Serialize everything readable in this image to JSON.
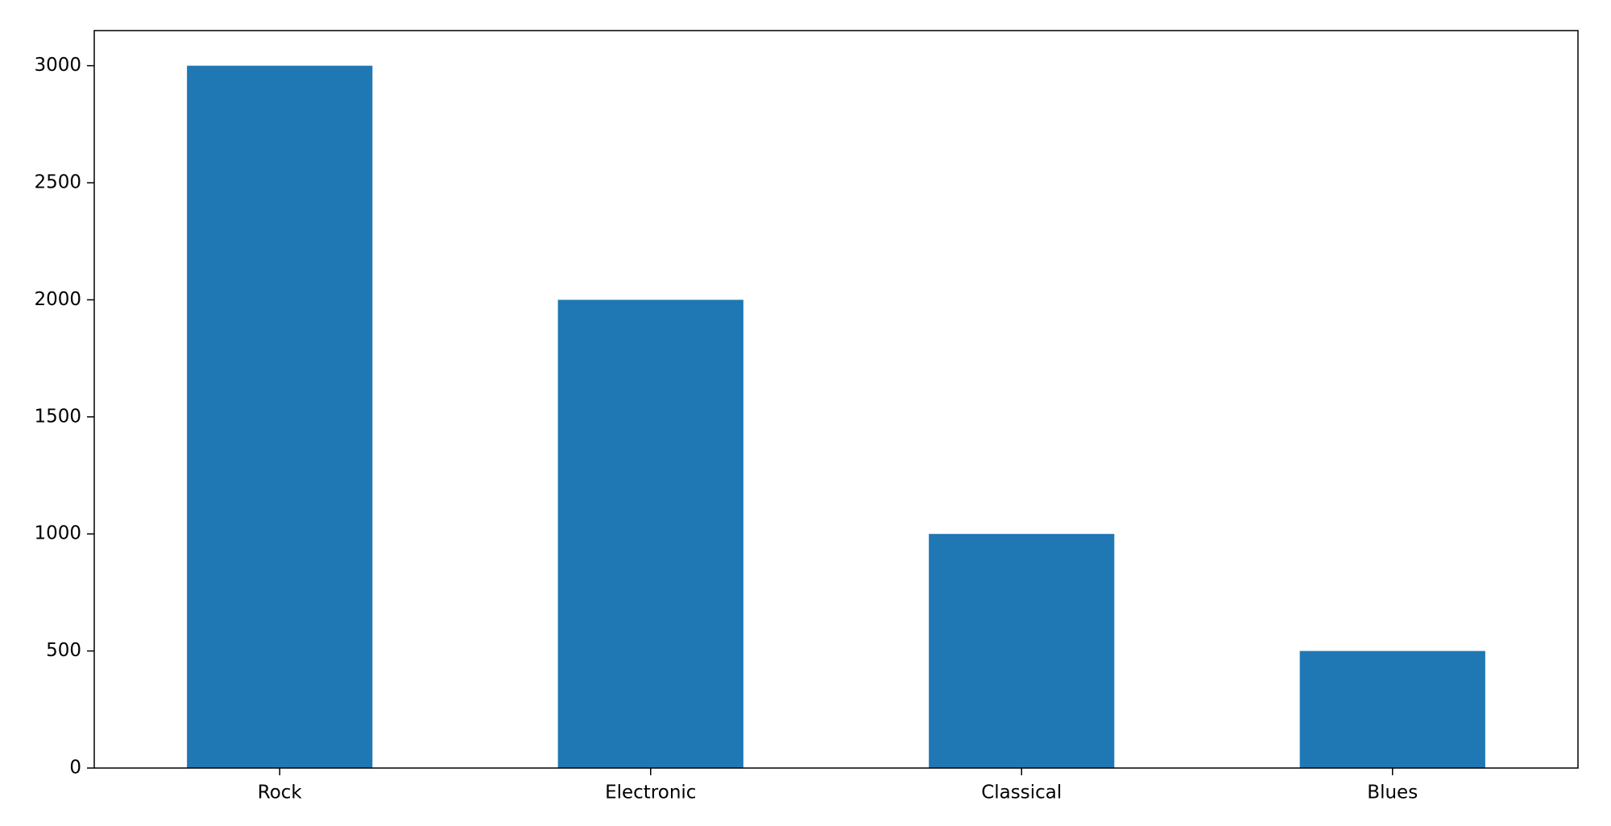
{
  "chart_data": {
    "type": "bar",
    "categories": [
      "Rock",
      "Electronic",
      "Classical",
      "Blues"
    ],
    "values": [
      3000,
      2000,
      1000,
      500
    ],
    "color": "#1f77b4",
    "ylim": [
      0,
      3150
    ],
    "yticks": [
      0,
      500,
      1000,
      1500,
      2000,
      2500,
      3000
    ],
    "grid": false
  }
}
